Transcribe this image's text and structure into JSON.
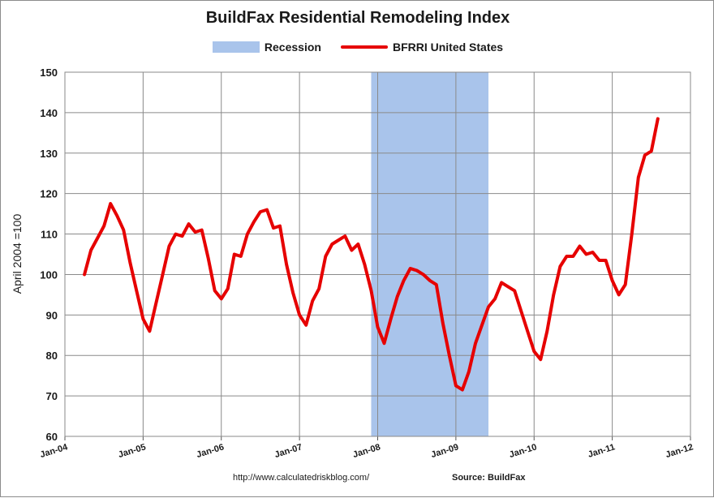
{
  "chart_data": {
    "type": "line",
    "title": "BuildFax Residential Remodeling Index",
    "ylabel": "April 2004 =100",
    "xlabel": "",
    "ylim": [
      60,
      150
    ],
    "yticks": [
      60,
      70,
      80,
      90,
      100,
      110,
      120,
      130,
      140,
      150
    ],
    "xticks": [
      "Jan-04",
      "Jan-05",
      "Jan-06",
      "Jan-07",
      "Jan-08",
      "Jan-09",
      "Jan-10",
      "Jan-11",
      "Jan-12"
    ],
    "grid": true,
    "legend_position": "top",
    "legend": [
      {
        "label": "Recession",
        "type": "area",
        "color": "#a9c4eb"
      },
      {
        "label": "BFRRI United States",
        "type": "line",
        "color": "#e60000"
      }
    ],
    "recession": {
      "start": "2007-12",
      "end": "2009-06"
    },
    "series": [
      {
        "name": "BFRRI United States",
        "color": "#e60000",
        "x": [
          "2004-04",
          "2004-05",
          "2004-06",
          "2004-07",
          "2004-08",
          "2004-09",
          "2004-10",
          "2004-11",
          "2004-12",
          "2005-01",
          "2005-02",
          "2005-03",
          "2005-04",
          "2005-05",
          "2005-06",
          "2005-07",
          "2005-08",
          "2005-09",
          "2005-10",
          "2005-11",
          "2005-12",
          "2006-01",
          "2006-02",
          "2006-03",
          "2006-04",
          "2006-05",
          "2006-06",
          "2006-07",
          "2006-08",
          "2006-09",
          "2006-10",
          "2006-11",
          "2006-12",
          "2007-01",
          "2007-02",
          "2007-03",
          "2007-04",
          "2007-05",
          "2007-06",
          "2007-07",
          "2007-08",
          "2007-09",
          "2007-10",
          "2007-11",
          "2007-12",
          "2008-01",
          "2008-02",
          "2008-03",
          "2008-04",
          "2008-05",
          "2008-06",
          "2008-07",
          "2008-08",
          "2008-09",
          "2008-10",
          "2008-11",
          "2008-12",
          "2009-01",
          "2009-02",
          "2009-03",
          "2009-04",
          "2009-05",
          "2009-06",
          "2009-07",
          "2009-08",
          "2009-09",
          "2009-10",
          "2009-11",
          "2009-12",
          "2010-01",
          "2010-02",
          "2010-03",
          "2010-04",
          "2010-05",
          "2010-06",
          "2010-07",
          "2010-08",
          "2010-09",
          "2010-10",
          "2010-11",
          "2010-12",
          "2011-01",
          "2011-02",
          "2011-03",
          "2011-04",
          "2011-05",
          "2011-06",
          "2011-07",
          "2011-08"
        ],
        "values": [
          100,
          106,
          109,
          112,
          117.5,
          114.5,
          111,
          103,
          96,
          89,
          86,
          93,
          100,
          107,
          110,
          109.5,
          112.5,
          110.5,
          111,
          104,
          96,
          94,
          96.5,
          105,
          104.5,
          110,
          113,
          115.5,
          116,
          111.5,
          112,
          102.5,
          95.5,
          90,
          87.5,
          93.5,
          96.5,
          104.5,
          107.5,
          108.5,
          109.5,
          106,
          107.5,
          102.5,
          96,
          87,
          83,
          89,
          94.5,
          98.5,
          101.5,
          101,
          100,
          98.5,
          97.5,
          88,
          80,
          72.5,
          71.5,
          76,
          83,
          87.5,
          92,
          94,
          98,
          97,
          96,
          91,
          86,
          81,
          79,
          86,
          95,
          102,
          104.5,
          104.5,
          107,
          105,
          105.5,
          103.5,
          103.5,
          98.5,
          95,
          97.5,
          110,
          124,
          129.5,
          130.5,
          138.5
        ]
      }
    ]
  },
  "footer": {
    "url": "http://www.calculatedriskblog.com/",
    "source": "Source:  BuildFax"
  }
}
